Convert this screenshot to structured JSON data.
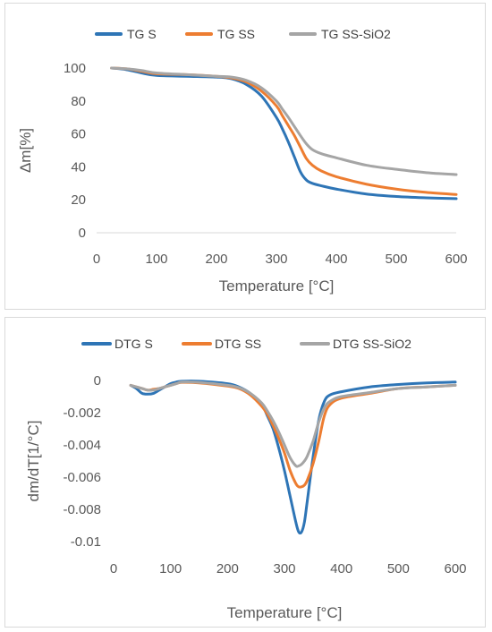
{
  "chart_data": [
    {
      "type": "line",
      "title": "",
      "xlabel": "Temperature [°C]",
      "ylabel": "Δm[%]",
      "xlim": [
        0,
        600
      ],
      "ylim": [
        0,
        100
      ],
      "x_ticks": [
        "0",
        "100",
        "200",
        "300",
        "400",
        "500",
        "600"
      ],
      "y_ticks": [
        "0",
        "20",
        "40",
        "60",
        "80",
        "100"
      ],
      "grid": false,
      "legend_position": "top",
      "series": [
        {
          "name": "TG S",
          "color": "#2e75b6",
          "x": [
            25,
            50,
            75,
            100,
            150,
            200,
            225,
            250,
            275,
            300,
            310,
            320,
            330,
            340,
            350,
            360,
            375,
            400,
            450,
            500,
            550,
            600
          ],
          "y": [
            100,
            99,
            97,
            95.5,
            95,
            94.5,
            93.5,
            90,
            83,
            70,
            63,
            55,
            46,
            37,
            32,
            30,
            28.5,
            26.5,
            23.5,
            22,
            21.2,
            20.7
          ]
        },
        {
          "name": "TG SS",
          "color": "#ed7d31",
          "x": [
            25,
            50,
            75,
            100,
            150,
            200,
            225,
            250,
            275,
            300,
            310,
            320,
            330,
            340,
            350,
            360,
            375,
            400,
            450,
            500,
            550,
            600
          ],
          "y": [
            100,
            99.5,
            98,
            96.5,
            96,
            95,
            94,
            91.5,
            86,
            77,
            71,
            65,
            59,
            52,
            45,
            41,
            37.5,
            34,
            29.5,
            26.5,
            24.5,
            23.2
          ]
        },
        {
          "name": "TG SS-SiO2",
          "color": "#a5a5a5",
          "x": [
            25,
            50,
            75,
            100,
            150,
            200,
            225,
            250,
            275,
            300,
            310,
            320,
            330,
            340,
            350,
            360,
            375,
            400,
            450,
            500,
            550,
            600
          ],
          "y": [
            100,
            99.5,
            98.5,
            97,
            96,
            95,
            94.5,
            92.5,
            88,
            80,
            75,
            70,
            64.5,
            59,
            54,
            50.5,
            48,
            45.5,
            41,
            38.5,
            36.5,
            35.3
          ]
        }
      ]
    },
    {
      "type": "line",
      "title": "",
      "xlabel": "Temperature [°C]",
      "ylabel": "dm/dT[1/°C]",
      "xlim": [
        0,
        600
      ],
      "ylim": [
        -0.01,
        0
      ],
      "x_ticks": [
        "0",
        "100",
        "200",
        "300",
        "400",
        "500",
        "600"
      ],
      "y_ticks": [
        "0",
        "-0.002",
        "-0.004",
        "-0.006",
        "-0.008",
        "-0.01"
      ],
      "grid": false,
      "legend_position": "top",
      "series": [
        {
          "name": "DTG S",
          "color": "#2e75b6",
          "x": [
            30,
            40,
            50,
            60,
            70,
            80,
            90,
            100,
            110,
            120,
            150,
            200,
            220,
            240,
            260,
            270,
            280,
            290,
            300,
            310,
            320,
            325,
            330,
            335,
            340,
            350,
            360,
            370,
            380,
            400,
            450,
            500,
            550,
            600
          ],
          "y": [
            -0.0003,
            -0.0005,
            -0.0008,
            -0.00085,
            -0.0008,
            -0.0006,
            -0.0004,
            -0.0002,
            -0.0001,
            -5e-05,
            -5e-05,
            -0.0002,
            -0.0004,
            -0.0008,
            -0.0015,
            -0.0022,
            -0.003,
            -0.0042,
            -0.0056,
            -0.0072,
            -0.0088,
            -0.0094,
            -0.0094,
            -0.0088,
            -0.0075,
            -0.0048,
            -0.0025,
            -0.0013,
            -0.0009,
            -0.0007,
            -0.0004,
            -0.00025,
            -0.00015,
            -0.0001
          ]
        },
        {
          "name": "DTG SS",
          "color": "#ed7d31",
          "x": [
            30,
            40,
            50,
            60,
            70,
            80,
            90,
            100,
            110,
            120,
            150,
            200,
            220,
            240,
            260,
            270,
            280,
            290,
            300,
            310,
            320,
            325,
            330,
            335,
            340,
            350,
            360,
            370,
            380,
            400,
            450,
            500,
            550,
            600
          ],
          "y": [
            -0.0003,
            -0.0004,
            -0.0005,
            -0.0006,
            -0.00055,
            -0.0005,
            -0.0004,
            -0.0003,
            -0.0002,
            -0.00012,
            -0.00015,
            -0.00035,
            -0.0005,
            -0.0009,
            -0.0016,
            -0.0021,
            -0.0028,
            -0.0036,
            -0.0045,
            -0.0056,
            -0.0064,
            -0.0066,
            -0.0066,
            -0.0065,
            -0.0062,
            -0.0052,
            -0.0038,
            -0.0022,
            -0.0015,
            -0.0011,
            -0.0008,
            -0.0005,
            -0.0004,
            -0.0003
          ]
        },
        {
          "name": "DTG SS-SiO2",
          "color": "#a5a5a5",
          "x": [
            30,
            40,
            50,
            60,
            70,
            80,
            90,
            100,
            110,
            120,
            150,
            200,
            220,
            240,
            260,
            270,
            280,
            290,
            300,
            310,
            320,
            325,
            330,
            335,
            340,
            350,
            360,
            370,
            380,
            400,
            450,
            500,
            550,
            600
          ],
          "y": [
            -0.0003,
            -0.0004,
            -0.0005,
            -0.0006,
            -0.0006,
            -0.0005,
            -0.0004,
            -0.0003,
            -0.0002,
            -0.0001,
            -0.00012,
            -0.0003,
            -0.00045,
            -0.0008,
            -0.0014,
            -0.0019,
            -0.0025,
            -0.0032,
            -0.004,
            -0.0048,
            -0.0053,
            -0.0053,
            -0.0052,
            -0.005,
            -0.0047,
            -0.0038,
            -0.0026,
            -0.0017,
            -0.0013,
            -0.001,
            -0.00075,
            -0.0005,
            -0.0004,
            -0.0003
          ]
        }
      ]
    }
  ]
}
